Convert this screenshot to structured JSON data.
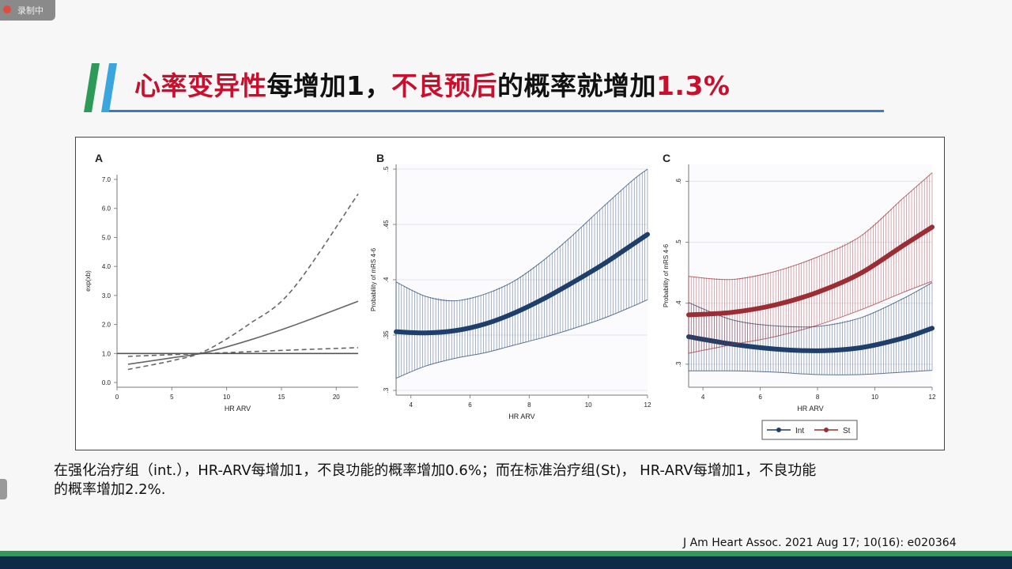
{
  "recording_badge": "录制中",
  "slide": {
    "title_parts": [
      {
        "text": "心率变异性",
        "color": "red"
      },
      {
        "text": "每增加1，",
        "color": "black"
      },
      {
        "text": "不良预后",
        "color": "red"
      },
      {
        "text": "的概率就增加",
        "color": "black"
      },
      {
        "text": "1.3%",
        "color": "red"
      }
    ],
    "caption_lines": [
      "在强化治疗组（int.），HR-ARV每增加1，不良功能的概率增加0.6%；而在标准治疗组(St)， HR-ARV每增加1，不良功能",
      "的概率增加2.2%."
    ],
    "citation": "J Am Heart Assoc. 2021 Aug 17; 10(16): e020364"
  },
  "colors": {
    "title_red": "#c8102e",
    "accent_blue": "#3f77c8",
    "bar_green": "#2e9a57",
    "series_navy": "#1f3f6b",
    "series_red": "#9b2d34"
  },
  "chart_data": [
    {
      "panel": "A",
      "type": "line",
      "xlabel": "HR ARV",
      "ylabel": "exp(xb)",
      "xlim": [
        0,
        22
      ],
      "ylim": [
        0,
        7
      ],
      "x_ticks": [
        "0",
        "5",
        "10",
        "15",
        "20"
      ],
      "y_ticks": [
        "0.0",
        "1.0",
        "2.0",
        "3.0",
        "4.0",
        "5.0",
        "6.0",
        "7.0"
      ],
      "series": [
        {
          "style": "solid",
          "x": [
            1,
            5,
            8,
            12,
            16,
            22
          ],
          "y": [
            0.63,
            0.85,
            1.03,
            1.45,
            1.95,
            2.8
          ]
        },
        {
          "style": "dashed",
          "x": [
            1,
            5,
            8,
            12,
            16,
            22
          ],
          "y": [
            0.45,
            0.75,
            1.08,
            2.0,
            3.2,
            6.5
          ]
        },
        {
          "style": "dashed",
          "x": [
            1,
            5,
            8,
            12,
            16,
            22
          ],
          "y": [
            0.9,
            0.96,
            1.0,
            1.06,
            1.12,
            1.2
          ]
        },
        {
          "style": "reference",
          "x": [
            0,
            22
          ],
          "y": [
            1.0,
            1.0
          ]
        }
      ]
    },
    {
      "panel": "B",
      "type": "line",
      "xlabel": "HR ARV",
      "ylabel": "Probability of mRS 4-6",
      "xlim": [
        3.5,
        12
      ],
      "ylim": [
        0.3,
        0.5
      ],
      "x_ticks": [
        "4",
        "6",
        "8",
        "10",
        "12"
      ],
      "y_ticks": [
        ".3",
        ".35",
        ".4",
        ".45",
        ".5"
      ],
      "series": [
        {
          "x": [
            3.5,
            4.5,
            5.5,
            6.5,
            7.5,
            8.5,
            9.5,
            10.5,
            11.5,
            12
          ],
          "y": [
            0.353,
            0.352,
            0.354,
            0.36,
            0.37,
            0.383,
            0.398,
            0.414,
            0.432,
            0.441
          ],
          "lower": [
            0.311,
            0.322,
            0.329,
            0.334,
            0.341,
            0.348,
            0.356,
            0.365,
            0.376,
            0.382
          ],
          "upper": [
            0.398,
            0.385,
            0.381,
            0.387,
            0.399,
            0.418,
            0.441,
            0.466,
            0.49,
            0.5
          ]
        }
      ]
    },
    {
      "panel": "C",
      "type": "line",
      "xlabel": "HR ARV",
      "ylabel": "Probability of mRS 4-6",
      "xlim": [
        3.5,
        12
      ],
      "ylim": [
        0.27,
        0.62
      ],
      "x_ticks": [
        "4",
        "6",
        "8",
        "10",
        "12"
      ],
      "y_ticks": [
        ".3",
        ".4",
        ".5",
        ".6"
      ],
      "legend": "bottom",
      "series": [
        {
          "name": "Int",
          "color": "#1f3f6b",
          "x": [
            3.5,
            5,
            6.5,
            8,
            9.5,
            11,
            12
          ],
          "y": [
            0.345,
            0.333,
            0.325,
            0.322,
            0.327,
            0.343,
            0.359
          ],
          "lower": [
            0.289,
            0.289,
            0.287,
            0.283,
            0.283,
            0.287,
            0.29
          ],
          "upper": [
            0.401,
            0.373,
            0.363,
            0.362,
            0.376,
            0.408,
            0.434
          ]
        },
        {
          "name": "St",
          "color": "#9b2d34",
          "x": [
            3.5,
            5,
            6.5,
            8,
            9.5,
            11,
            12
          ],
          "y": [
            0.381,
            0.385,
            0.397,
            0.418,
            0.449,
            0.495,
            0.525
          ],
          "lower": [
            0.318,
            0.332,
            0.345,
            0.364,
            0.389,
            0.418,
            0.436
          ],
          "upper": [
            0.444,
            0.439,
            0.452,
            0.476,
            0.51,
            0.573,
            0.614
          ]
        }
      ]
    }
  ]
}
